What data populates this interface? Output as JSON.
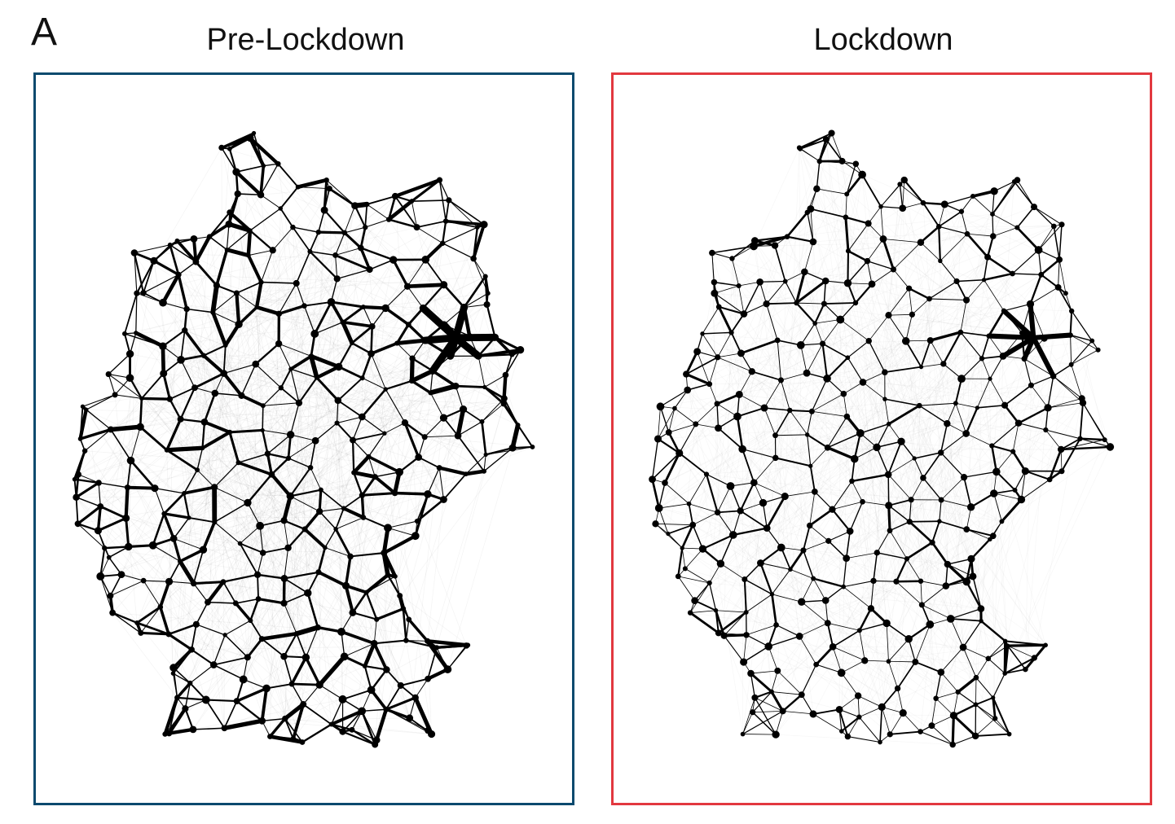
{
  "figure": {
    "panel_letter": "A",
    "panels": [
      {
        "title": "Pre-Lockdown",
        "frame_color": "#0b4a6e",
        "edge_weight_factor": 1.0
      },
      {
        "title": "Lockdown",
        "frame_color": "#e2383f",
        "edge_weight_factor": 0.6
      }
    ]
  }
}
